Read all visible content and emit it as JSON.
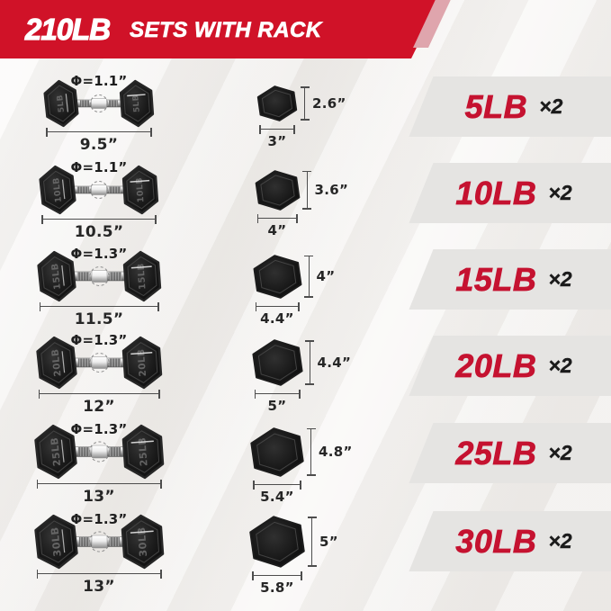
{
  "banner": {
    "weight_label": "210LB",
    "subtitle": "SETS WITH RACK"
  },
  "rows": [
    {
      "handle_diameter": "Φ=1.1”",
      "length": "9.5”",
      "hex_width": "3”",
      "hex_height": "2.6”",
      "weight": "5LB",
      "quantity": "×2",
      "engraving": "5LB"
    },
    {
      "handle_diameter": "Φ=1.1”",
      "length": "10.5”",
      "hex_width": "4”",
      "hex_height": "3.6”",
      "weight": "10LB",
      "quantity": "×2",
      "engraving": "10LB"
    },
    {
      "handle_diameter": "Φ=1.3”",
      "length": "11.5”",
      "hex_width": "4.4”",
      "hex_height": "4”",
      "weight": "15LB",
      "quantity": "×2",
      "engraving": "15LB"
    },
    {
      "handle_diameter": "Φ=1.3”",
      "length": "12”",
      "hex_width": "5”",
      "hex_height": "4.4”",
      "weight": "20LB",
      "quantity": "×2",
      "engraving": "20LB"
    },
    {
      "handle_diameter": "Φ=1.3”",
      "length": "13”",
      "hex_width": "5.4”",
      "hex_height": "4.8”",
      "weight": "25LB",
      "quantity": "×2",
      "engraving": "25LB"
    },
    {
      "handle_diameter": "Φ=1.3”",
      "length": "13”",
      "hex_width": "5.8”",
      "hex_height": "5”",
      "weight": "30LB",
      "quantity": "×2",
      "engraving": "30LB"
    }
  ],
  "colors": {
    "banner_red": "#d01228",
    "stripe_pink": "#dfa5ad",
    "label_red": "#c51230",
    "band_gray": "#e5e4e2",
    "dim_text": "#262626",
    "background": "#f1efed"
  }
}
